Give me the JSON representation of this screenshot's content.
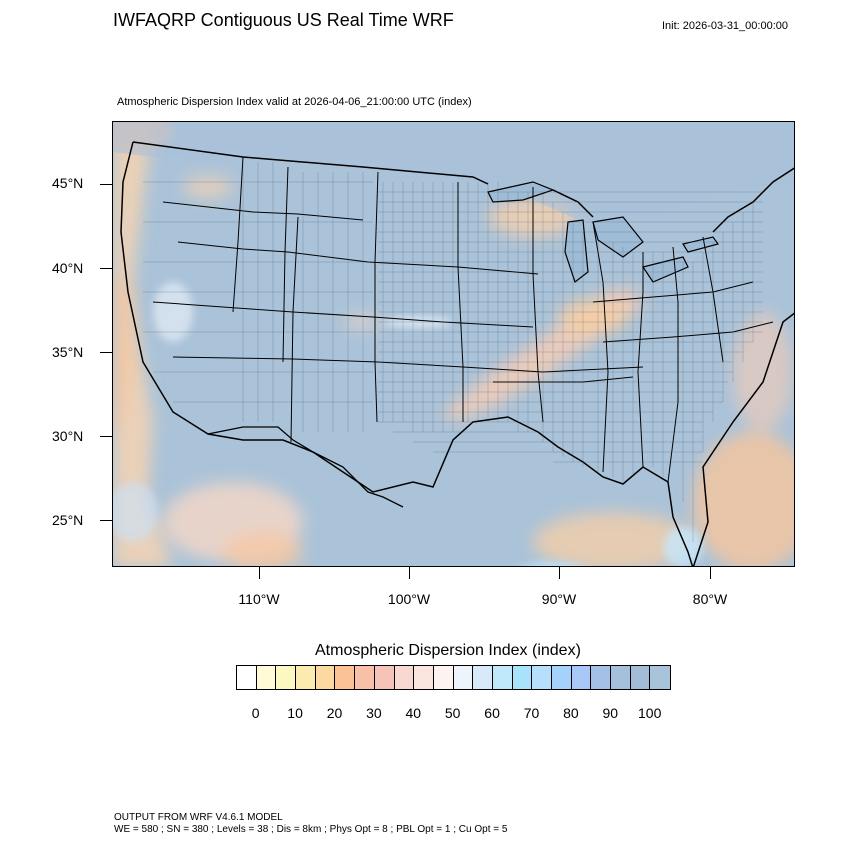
{
  "header": {
    "title": "IWFAQRP Contiguous US Real Time WRF",
    "init": "Init: 2026-03-31_00:00:00",
    "subtitle": "Atmospheric Dispersion Index valid at 2026-04-06_21:00:00 UTC   (index)"
  },
  "map": {
    "lat_labels": [
      "45°N",
      "40°N",
      "35°N",
      "30°N",
      "25°N"
    ],
    "lon_labels": [
      "110°W",
      "100°W",
      "90°W",
      "80°W"
    ],
    "land_color": "#aac3d9",
    "water_color": "#9db9d3"
  },
  "colorbar": {
    "title": "Atmospheric Dispersion Index  (index)",
    "labels": [
      "0",
      "10",
      "20",
      "30",
      "40",
      "50",
      "60",
      "70",
      "80",
      "90",
      "100"
    ],
    "colors": [
      "#ffffff",
      "#fffbd6",
      "#fbf8c0",
      "#fbebb0",
      "#fbd9a0",
      "#fbc395",
      "#f8c0a7",
      "#f5c3b8",
      "#f8d8d0",
      "#fbe5df",
      "#fdf4f1",
      "#eef4fb",
      "#d8eafa",
      "#bfe9fb",
      "#a8e2fb",
      "#b6dffb",
      "#a4d2fa",
      "#a8c6f6",
      "#a5c0e6",
      "#a5c0da",
      "#a4bdd6",
      "#a9c3db"
    ]
  },
  "footer": {
    "line1": "OUTPUT FROM WRF V4.6.1 MODEL",
    "line2": "WE = 580 ; SN = 380 ; Levels = 38 ; Dis = 8km ; Phys Opt = 8 ; PBL Opt = 1 ; Cu Opt = 5"
  }
}
